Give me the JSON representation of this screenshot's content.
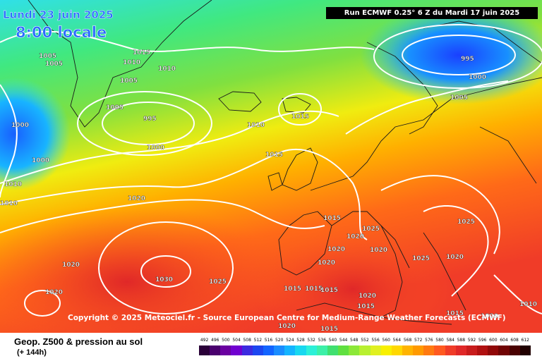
{
  "header": {
    "date": "Lundi 23 juin 2025",
    "time": "8:00 locale",
    "run": "Run ECMWF 0.25° 6 Z du Mardi 17 juin 2025"
  },
  "copyright": "Copyright © 2025 Meteociel.fr - Source European Centre for Medium-Range Weather Forecasts (ECMWF)",
  "footer": {
    "product": "Geop. Z500 & pression au sol",
    "range": "(+ 144h)"
  },
  "legend": {
    "ticks": [
      "492",
      "496",
      "500",
      "504",
      "508",
      "512",
      "516",
      "520",
      "524",
      "528",
      "532",
      "536",
      "540",
      "544",
      "548",
      "552",
      "556",
      "560",
      "564",
      "568",
      "572",
      "576",
      "580",
      "584",
      "588",
      "592",
      "596",
      "600",
      "604",
      "608",
      "612"
    ],
    "colors": [
      "#2a0038",
      "#4a006e",
      "#6a00a0",
      "#7000d0",
      "#3c2ae0",
      "#1c46f0",
      "#1264ff",
      "#1a8cff",
      "#14b4ff",
      "#18d8f0",
      "#2cf0d8",
      "#3cf0a8",
      "#40e070",
      "#60e040",
      "#8ce838",
      "#b8f030",
      "#e0f020",
      "#f8f000",
      "#ffd800",
      "#ffb400",
      "#ff9a00",
      "#ff7a10",
      "#ff5a20",
      "#f03c28",
      "#e02828",
      "#c81c1c",
      "#b01010",
      "#900808",
      "#700404",
      "#4a0202",
      "#200000"
    ]
  },
  "isobars": [
    {
      "text": "1005",
      "role": "label"
    },
    {
      "text": "1005",
      "role": "label"
    },
    {
      "text": "1015",
      "role": "label"
    },
    {
      "text": "1010",
      "role": "label"
    },
    {
      "text": "1010",
      "role": "label"
    },
    {
      "text": "1005",
      "role": "label"
    },
    {
      "text": "1005",
      "role": "label"
    },
    {
      "text": "995",
      "role": "label"
    },
    {
      "text": "1000",
      "role": "label"
    },
    {
      "text": "1000",
      "role": "label"
    },
    {
      "text": "1000",
      "role": "label"
    },
    {
      "text": "1010",
      "role": "label"
    },
    {
      "text": "1010",
      "role": "label"
    },
    {
      "text": "1015",
      "role": "label"
    },
    {
      "text": "1010",
      "role": "label"
    },
    {
      "text": "1015",
      "role": "label"
    },
    {
      "text": "995",
      "role": "label"
    },
    {
      "text": "1000",
      "role": "label"
    },
    {
      "text": "1005",
      "role": "label"
    },
    {
      "text": "1020",
      "role": "label"
    },
    {
      "text": "1015",
      "role": "label"
    },
    {
      "text": "1025",
      "role": "label"
    },
    {
      "text": "1020",
      "role": "label"
    },
    {
      "text": "1020",
      "role": "label"
    },
    {
      "text": "1020",
      "role": "label"
    },
    {
      "text": "1025",
      "role": "label"
    },
    {
      "text": "1020",
      "role": "label"
    },
    {
      "text": "1020",
      "role": "label"
    },
    {
      "text": "1030",
      "role": "label"
    },
    {
      "text": "1025",
      "role": "label"
    },
    {
      "text": "1020",
      "role": "label"
    },
    {
      "text": "1020",
      "role": "label"
    },
    {
      "text": "1015",
      "role": "label"
    },
    {
      "text": "1015",
      "role": "label"
    },
    {
      "text": "1015",
      "role": "label"
    },
    {
      "text": "1020",
      "role": "label"
    },
    {
      "text": "1015",
      "role": "label"
    },
    {
      "text": "1015",
      "role": "label"
    },
    {
      "text": "1010",
      "role": "label"
    },
    {
      "text": "1020",
      "role": "label"
    },
    {
      "text": "1015",
      "role": "label"
    },
    {
      "text": "1025",
      "role": "label"
    },
    {
      "text": "1020",
      "role": "label"
    }
  ]
}
